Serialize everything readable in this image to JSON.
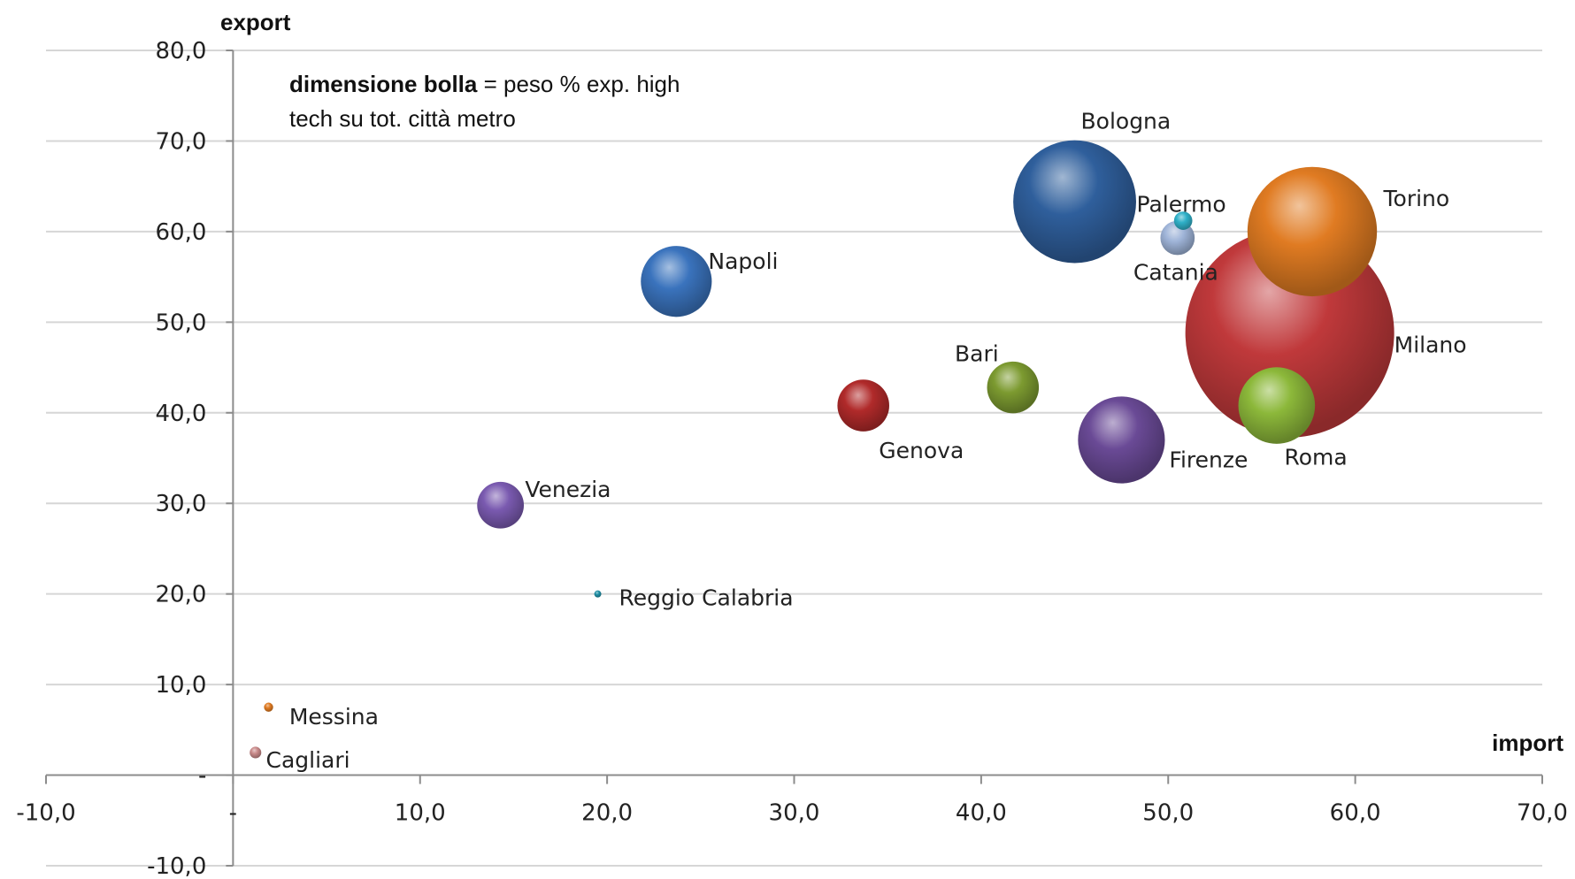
{
  "chart_data": {
    "type": "bubble",
    "xlabel": "import",
    "ylabel": "export",
    "xlim": [
      -10,
      70
    ],
    "ylim": [
      -10,
      80
    ],
    "x_ticks": [
      "-10,0",
      "-",
      "10,0",
      "20,0",
      "30,0",
      "40,0",
      "50,0",
      "60,0",
      "70,0"
    ],
    "y_ticks": [
      "-10,0",
      "-",
      "10,0",
      "20,0",
      "30,0",
      "40,0",
      "50,0",
      "60,0",
      "70,0",
      "80,0"
    ],
    "grid": true,
    "annotation": {
      "bold": "dimensione bolla",
      "rest_line1": " = peso % exp. high",
      "line2": "tech su tot. città metro"
    },
    "points": [
      {
        "name": "Milano",
        "x": 56.5,
        "y": 48.8,
        "size": 26.0,
        "color": "#c0393b"
      },
      {
        "name": "Torino",
        "x": 57.7,
        "y": 60.0,
        "size": 10.0,
        "color": "#e07b22"
      },
      {
        "name": "Bologna",
        "x": 45.0,
        "y": 63.3,
        "size": 9.0,
        "color": "#2f5f9c"
      },
      {
        "name": "Firenze",
        "x": 47.5,
        "y": 37.0,
        "size": 4.5,
        "color": "#6a4a96"
      },
      {
        "name": "Roma",
        "x": 55.8,
        "y": 40.8,
        "size": 3.5,
        "color": "#8cb83a"
      },
      {
        "name": "Napoli",
        "x": 23.7,
        "y": 54.5,
        "size": 3.0,
        "color": "#3a73bd"
      },
      {
        "name": "Genova",
        "x": 33.7,
        "y": 40.8,
        "size": 1.6,
        "color": "#b02a2a"
      },
      {
        "name": "Bari",
        "x": 41.7,
        "y": 42.8,
        "size": 1.6,
        "color": "#7c9a30"
      },
      {
        "name": "Venezia",
        "x": 14.3,
        "y": 29.8,
        "size": 1.3,
        "color": "#7a5ab0"
      },
      {
        "name": "Catania",
        "x": 50.5,
        "y": 59.3,
        "size": 0.7,
        "color": "#9fb4d8"
      },
      {
        "name": "Palermo",
        "x": 50.8,
        "y": 61.2,
        "size": 0.2,
        "color": "#2fb0c8"
      },
      {
        "name": "Reggio Calabria",
        "x": 19.5,
        "y": 20.0,
        "size": 0.02,
        "color": "#1f8fa5"
      },
      {
        "name": "Messina",
        "x": 1.9,
        "y": 7.5,
        "size": 0.05,
        "color": "#e07b22"
      },
      {
        "name": "Cagliari",
        "x": 1.2,
        "y": 2.5,
        "size": 0.08,
        "color": "#c98a8a"
      }
    ]
  }
}
